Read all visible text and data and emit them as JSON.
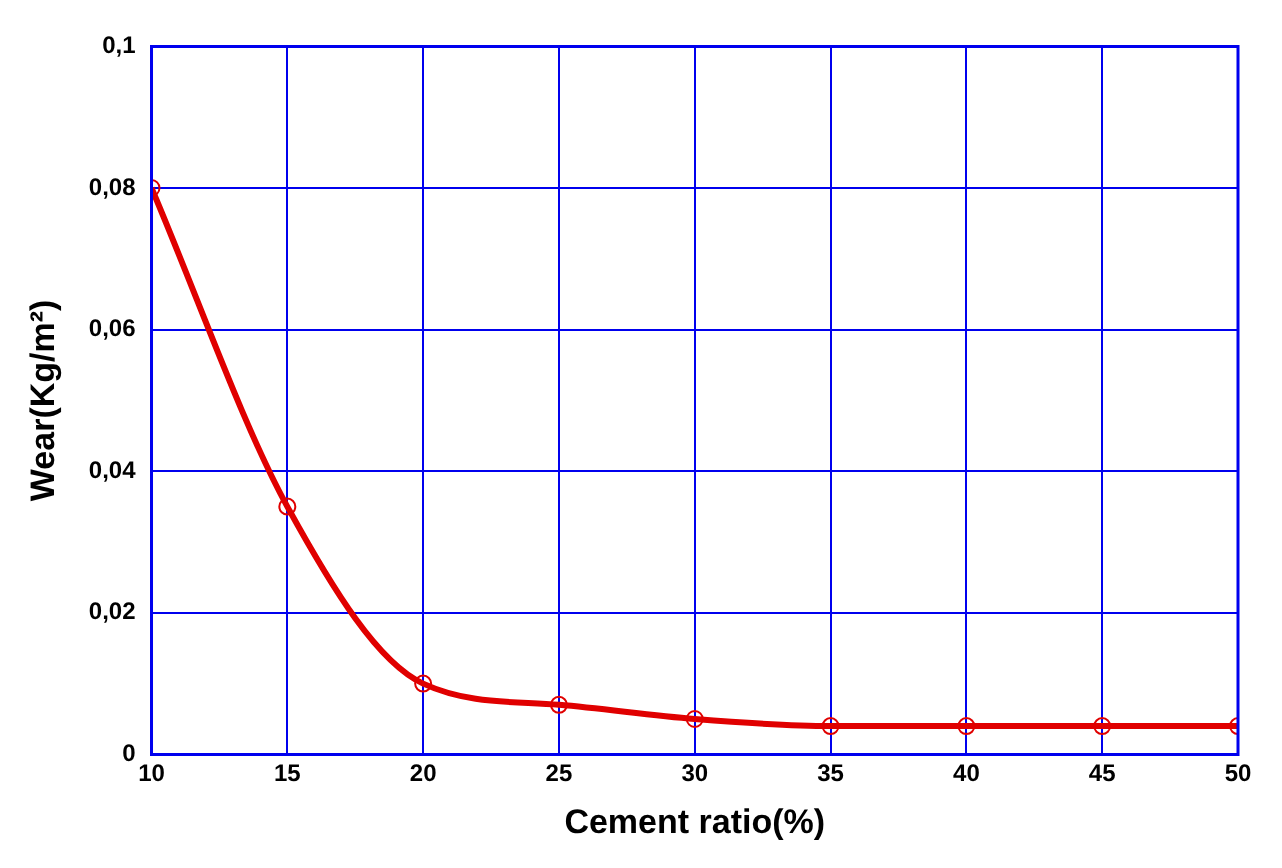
{
  "chart_data": {
    "type": "line",
    "xlabel": "Cement ratio(%)",
    "ylabel": "Wear(Kg/m²)",
    "x": [
      10,
      15,
      20,
      25,
      30,
      35,
      40,
      45,
      50
    ],
    "series": [
      {
        "color": "#e00000",
        "values": [
          0.08,
          0.035,
          0.01,
          0.007,
          0.005,
          0.004,
          0.004,
          0.004,
          0.004
        ]
      }
    ],
    "xlim": [
      10,
      50
    ],
    "xticks": [
      10,
      15,
      20,
      25,
      30,
      35,
      40,
      45,
      50
    ],
    "ylim": [
      0,
      0.1
    ],
    "yticks": [
      0,
      {
        "value": 0.02,
        "label": "0,02"
      },
      {
        "value": 0.04,
        "label": "0,04"
      },
      {
        "value": 0.06,
        "label": "0,06"
      },
      {
        "value": 0.08,
        "label": "0,08"
      },
      {
        "value": 0.1,
        "label": "0,1"
      }
    ],
    "grid": true,
    "marker": "circle",
    "line_style": "solid",
    "legend": false
  }
}
